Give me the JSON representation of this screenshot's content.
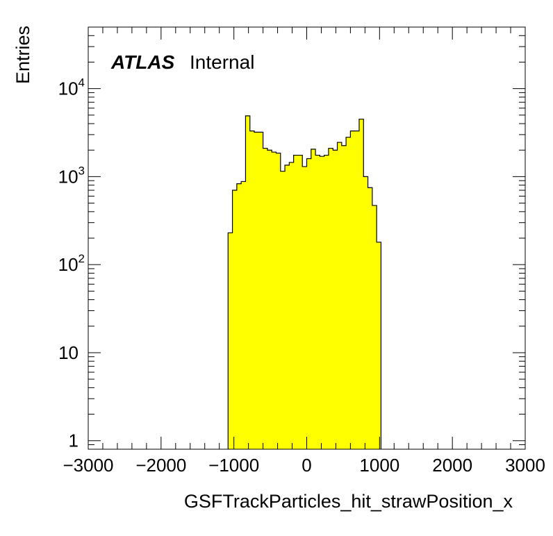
{
  "chart_data": {
    "type": "bar",
    "title": "",
    "xlabel": "GSFTrackParticles_hit_strawPosition_x",
    "ylabel": "Entries",
    "xlim": [
      -3000,
      3000
    ],
    "ylim": [
      0.8,
      50000
    ],
    "log_y": true,
    "grid": false,
    "x_ticks": [
      -3000,
      -2000,
      -1000,
      0,
      1000,
      2000,
      3000
    ],
    "x_tick_labels": [
      "−3000",
      "−2000",
      "−1000",
      "0",
      "1000",
      "2000",
      "3000"
    ],
    "y_ticks": [
      1,
      10,
      100,
      1000,
      10000
    ],
    "y_tick_labels": [
      {
        "base": "1",
        "exp": ""
      },
      {
        "base": "10",
        "exp": ""
      },
      {
        "base": "10",
        "exp": "2"
      },
      {
        "base": "10",
        "exp": "3"
      },
      {
        "base": "10",
        "exp": "4"
      }
    ],
    "bin_width": 60,
    "bin_edges_start": -1080,
    "values": [
      230,
      700,
      830,
      880,
      4900,
      3300,
      3200,
      3200,
      2100,
      2000,
      1900,
      1850,
      1150,
      1350,
      1450,
      1750,
      1750,
      1300,
      1600,
      2050,
      1750,
      1700,
      1750,
      2100,
      2000,
      2450,
      2250,
      2800,
      3300,
      3300,
      4500,
      1000,
      750,
      470,
      180
    ],
    "series": [
      {
        "fill": "#ffff00",
        "edge": "#000000"
      }
    ],
    "annotation": {
      "bold": "ATLAS",
      "normal": "Internal"
    }
  }
}
